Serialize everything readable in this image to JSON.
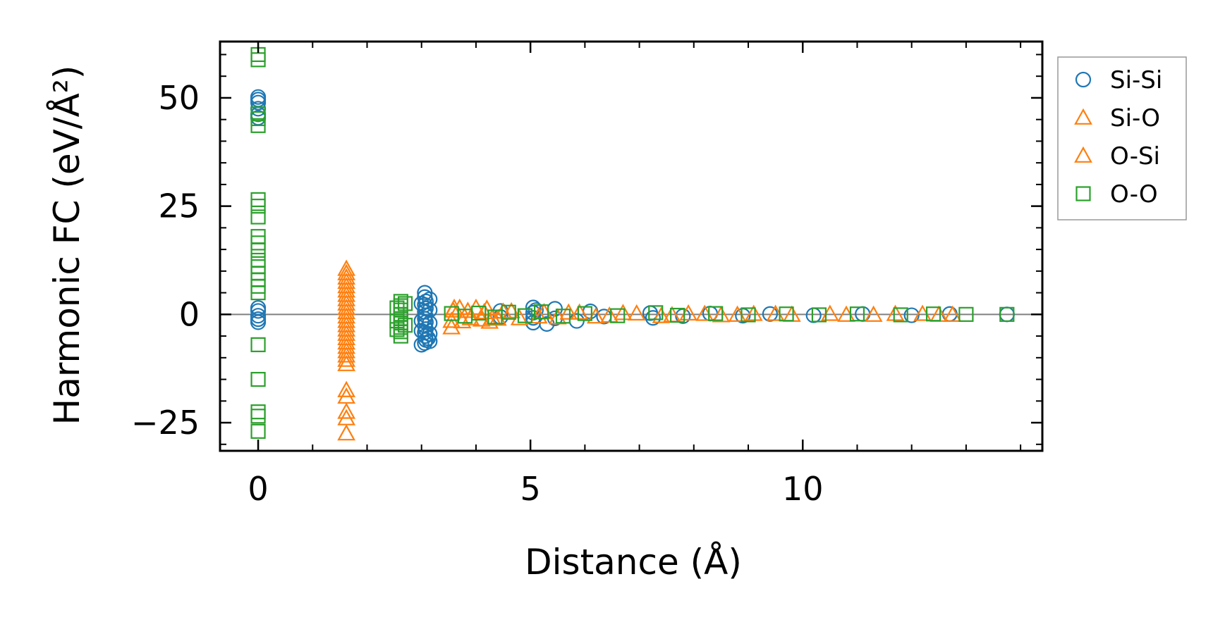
{
  "chart_data": {
    "type": "scatter",
    "title": "",
    "xlabel": "Distance (Å)",
    "ylabel": "Harmonic FC (eV/Å²)",
    "xlim": [
      -0.7,
      14.4
    ],
    "ylim": [
      -31.5,
      63
    ],
    "xticks": [
      0,
      5,
      10
    ],
    "yticks": [
      -25,
      0,
      25,
      50
    ],
    "xtick_labels": [
      "0",
      "5",
      "10"
    ],
    "ytick_labels": [
      "−25",
      "0",
      "25",
      "50"
    ],
    "reference_line_y": 0,
    "grid": false,
    "legend_position": "outside-top-right",
    "series": [
      {
        "name": "Si-Si",
        "marker": "circle",
        "color": "#1f77b4",
        "points": [
          [
            0,
            50.2
          ],
          [
            0,
            49.6
          ],
          [
            0,
            48.9
          ],
          [
            0,
            47.5
          ],
          [
            0,
            46.2
          ],
          [
            0,
            45.4
          ],
          [
            0,
            1.5
          ],
          [
            0,
            0.8
          ],
          [
            0,
            -0.3
          ],
          [
            0,
            -1.1
          ],
          [
            0,
            -1.8
          ],
          [
            3.06,
            5.0
          ],
          [
            3.06,
            4.0
          ],
          [
            3.08,
            3.0
          ],
          [
            3.06,
            2.2
          ],
          [
            3.08,
            1.4
          ],
          [
            3.06,
            0.6
          ],
          [
            3.07,
            -0.2
          ],
          [
            3.06,
            -1.0
          ],
          [
            3.08,
            -1.8
          ],
          [
            3.06,
            -2.6
          ],
          [
            3.08,
            -3.4
          ],
          [
            3.06,
            -4.2
          ],
          [
            3.07,
            -5.0
          ],
          [
            3.08,
            -5.9
          ],
          [
            3.06,
            -6.6
          ],
          [
            3.15,
            -6.2
          ],
          [
            3.15,
            -4.5
          ],
          [
            3.15,
            -2.0
          ],
          [
            3.15,
            1.0
          ],
          [
            3.15,
            3.5
          ],
          [
            3.0,
            2.5
          ],
          [
            3.0,
            -1.5
          ],
          [
            3.0,
            -3.8
          ],
          [
            3.0,
            -7.0
          ],
          [
            3.12,
            -5.5
          ],
          [
            4.45,
            0.8
          ],
          [
            4.45,
            -0.6
          ],
          [
            5.05,
            1.6
          ],
          [
            5.05,
            0.4
          ],
          [
            5.05,
            -0.8
          ],
          [
            5.05,
            -1.9
          ],
          [
            5.1,
            1.0
          ],
          [
            5.3,
            -2.2
          ],
          [
            5.45,
            1.3
          ],
          [
            5.45,
            -0.9
          ],
          [
            5.85,
            -1.5
          ],
          [
            6.1,
            0.7
          ],
          [
            6.35,
            -0.5
          ],
          [
            7.2,
            0.3
          ],
          [
            7.25,
            -0.8
          ],
          [
            7.8,
            -0.4
          ],
          [
            8.3,
            0.2
          ],
          [
            8.9,
            -0.3
          ],
          [
            9.4,
            0.1
          ],
          [
            10.2,
            -0.2
          ],
          [
            11.1,
            0.1
          ],
          [
            12.0,
            -0.2
          ],
          [
            12.7,
            0.1
          ],
          [
            13.75,
            0.0
          ]
        ]
      },
      {
        "name": "Si-O",
        "marker": "triangle",
        "color": "#ff7f0e",
        "points": [
          [
            1.62,
            10.5
          ],
          [
            1.62,
            9.5
          ],
          [
            1.62,
            8.5
          ],
          [
            1.62,
            7.5
          ],
          [
            1.62,
            6.5
          ],
          [
            1.62,
            5.5
          ],
          [
            1.62,
            4.5
          ],
          [
            1.62,
            3.5
          ],
          [
            1.62,
            2.5
          ],
          [
            1.62,
            1.5
          ],
          [
            1.62,
            0.5
          ],
          [
            1.62,
            -0.5
          ],
          [
            1.62,
            -1.5
          ],
          [
            1.62,
            -2.5
          ],
          [
            1.62,
            -3.5
          ],
          [
            1.62,
            -4.5
          ],
          [
            1.62,
            -5.5
          ],
          [
            1.62,
            -6.5
          ],
          [
            1.62,
            -7.5
          ],
          [
            1.62,
            -8.5
          ],
          [
            1.62,
            -9.5
          ],
          [
            1.62,
            -10.5
          ],
          [
            1.62,
            -11.5
          ],
          [
            1.62,
            -17.5
          ],
          [
            1.62,
            -19.0
          ],
          [
            1.62,
            -22.5
          ],
          [
            1.62,
            -24.0
          ],
          [
            1.62,
            -27.5
          ],
          [
            3.55,
            -1.5
          ],
          [
            3.55,
            -3.0
          ],
          [
            3.6,
            1.5
          ],
          [
            3.7,
            1.5
          ],
          [
            3.85,
            0.8
          ],
          [
            4.0,
            1.5
          ],
          [
            4.1,
            -1.2
          ],
          [
            4.2,
            1.3
          ],
          [
            4.3,
            -0.8
          ],
          [
            4.5,
            0.6
          ],
          [
            4.8,
            -0.9
          ],
          [
            5.25,
            0.5
          ],
          [
            5.5,
            -0.7
          ],
          [
            5.9,
            0.4
          ],
          [
            6.2,
            -0.5
          ],
          [
            6.7,
            0.3
          ],
          [
            7.4,
            -0.4
          ],
          [
            7.9,
            0.2
          ],
          [
            8.5,
            -0.2
          ],
          [
            9.1,
            0.1
          ],
          [
            9.8,
            -0.1
          ],
          [
            10.5,
            0.1
          ],
          [
            11.3,
            -0.1
          ],
          [
            12.2,
            0.1
          ],
          [
            12.75,
            -0.1
          ]
        ]
      },
      {
        "name": "O-Si",
        "marker": "triangle",
        "color": "#ff7f0e",
        "points": [
          [
            3.58,
            0.9
          ],
          [
            3.75,
            -1.6
          ],
          [
            3.9,
            -0.9
          ],
          [
            4.15,
            0.5
          ],
          [
            4.25,
            -1.7
          ],
          [
            4.4,
            -1.0
          ],
          [
            4.65,
            0.7
          ],
          [
            5.15,
            -0.5
          ],
          [
            5.7,
            0.4
          ],
          [
            6.45,
            -0.3
          ],
          [
            6.95,
            0.2
          ],
          [
            7.6,
            -0.2
          ],
          [
            8.2,
            0.1
          ],
          [
            8.8,
            -0.1
          ],
          [
            9.5,
            0.1
          ],
          [
            10.8,
            -0.1
          ],
          [
            11.7,
            0.1
          ],
          [
            12.5,
            -0.1
          ]
        ]
      },
      {
        "name": "O-O",
        "marker": "square",
        "color": "#2ca02c",
        "points": [
          [
            0,
            60.0
          ],
          [
            0,
            58.8
          ],
          [
            0,
            46.3
          ],
          [
            0,
            45.2
          ],
          [
            0,
            43.6
          ],
          [
            0,
            26.5
          ],
          [
            0,
            25.0
          ],
          [
            0,
            22.5
          ],
          [
            0,
            18.0
          ],
          [
            0,
            16.5
          ],
          [
            0,
            14.8
          ],
          [
            0,
            12.5
          ],
          [
            0,
            11.0
          ],
          [
            0,
            9.5
          ],
          [
            0,
            8.0
          ],
          [
            0,
            6.5
          ],
          [
            0,
            5.0
          ],
          [
            0,
            -7.0
          ],
          [
            0,
            -15.0
          ],
          [
            0,
            -22.5
          ],
          [
            0,
            -23.5
          ],
          [
            0,
            -27.0
          ],
          [
            2.62,
            3.0
          ],
          [
            2.62,
            2.0
          ],
          [
            2.62,
            1.0
          ],
          [
            2.62,
            0.0
          ],
          [
            2.62,
            -1.0
          ],
          [
            2.62,
            -2.0
          ],
          [
            2.62,
            -3.0
          ],
          [
            2.62,
            -4.0
          ],
          [
            2.62,
            -5.0
          ],
          [
            2.55,
            1.5
          ],
          [
            2.55,
            -1.5
          ],
          [
            2.55,
            -3.5
          ],
          [
            2.7,
            2.5
          ],
          [
            2.7,
            -2.5
          ],
          [
            3.55,
            0.2
          ],
          [
            3.8,
            -0.4
          ],
          [
            4.05,
            0.3
          ],
          [
            4.35,
            -0.6
          ],
          [
            4.6,
            0.5
          ],
          [
            4.9,
            -0.3
          ],
          [
            5.2,
            0.6
          ],
          [
            5.6,
            -0.4
          ],
          [
            6.0,
            0.2
          ],
          [
            6.6,
            -0.3
          ],
          [
            7.3,
            0.4
          ],
          [
            7.7,
            -0.2
          ],
          [
            8.4,
            0.2
          ],
          [
            9.0,
            -0.1
          ],
          [
            9.7,
            0.1
          ],
          [
            10.3,
            -0.1
          ],
          [
            11.0,
            0.1
          ],
          [
            11.8,
            -0.1
          ],
          [
            12.4,
            0.1
          ],
          [
            13.0,
            0.0
          ],
          [
            13.75,
            0.0
          ]
        ]
      }
    ]
  }
}
